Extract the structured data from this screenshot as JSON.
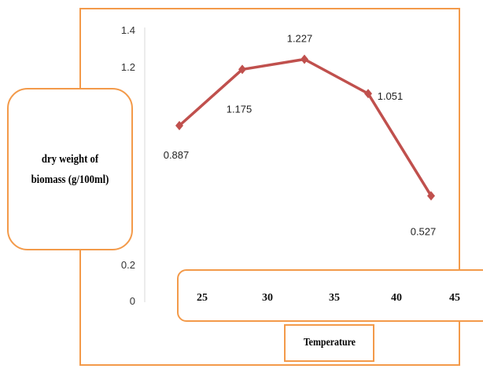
{
  "chart_data": {
    "type": "line",
    "ylabel": "dry weight of biomass (g/100ml)",
    "xlabel": "Temperature",
    "y_ticks": [
      "1.4",
      "1.2",
      "0.2",
      "0"
    ],
    "x_ticks": [
      "25",
      "30",
      "35",
      "40",
      "45"
    ],
    "series": [
      {
        "values": [
          0.887,
          1.175,
          1.227,
          1.051,
          0.527
        ],
        "labels": [
          "0.887",
          "1.175",
          "1.227",
          "1.051",
          "0.527"
        ],
        "color": "#c0504d"
      }
    ],
    "grid": false,
    "legend": "none"
  },
  "colors": {
    "accent": "#f39a4a",
    "series": "#c0504d"
  }
}
